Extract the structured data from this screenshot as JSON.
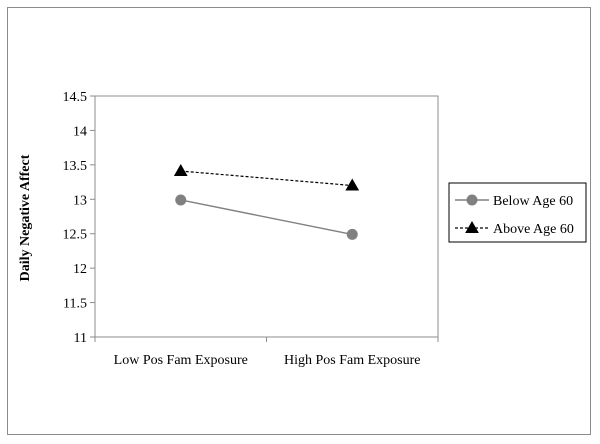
{
  "chart_data": {
    "type": "line",
    "categories": [
      "Low Pos Fam Exposure",
      "High Pos Fam Exposure"
    ],
    "ylabel": "Daily Negative Affect",
    "xlabel": "",
    "ylim": [
      11,
      14.5
    ],
    "yticks": [
      "11",
      "11.5",
      "12",
      "12.5",
      "13",
      "13.5",
      "14",
      "14.5"
    ],
    "grid": false,
    "legend_position": "right",
    "series": [
      {
        "name": "Below Age 60",
        "values": [
          12.99,
          12.49
        ],
        "color": "#808080",
        "marker": "circle",
        "line": "solid"
      },
      {
        "name": "Above Age 60",
        "values": [
          13.41,
          13.2
        ],
        "color": "#000000",
        "marker": "triangle",
        "line": "dashed"
      }
    ]
  }
}
